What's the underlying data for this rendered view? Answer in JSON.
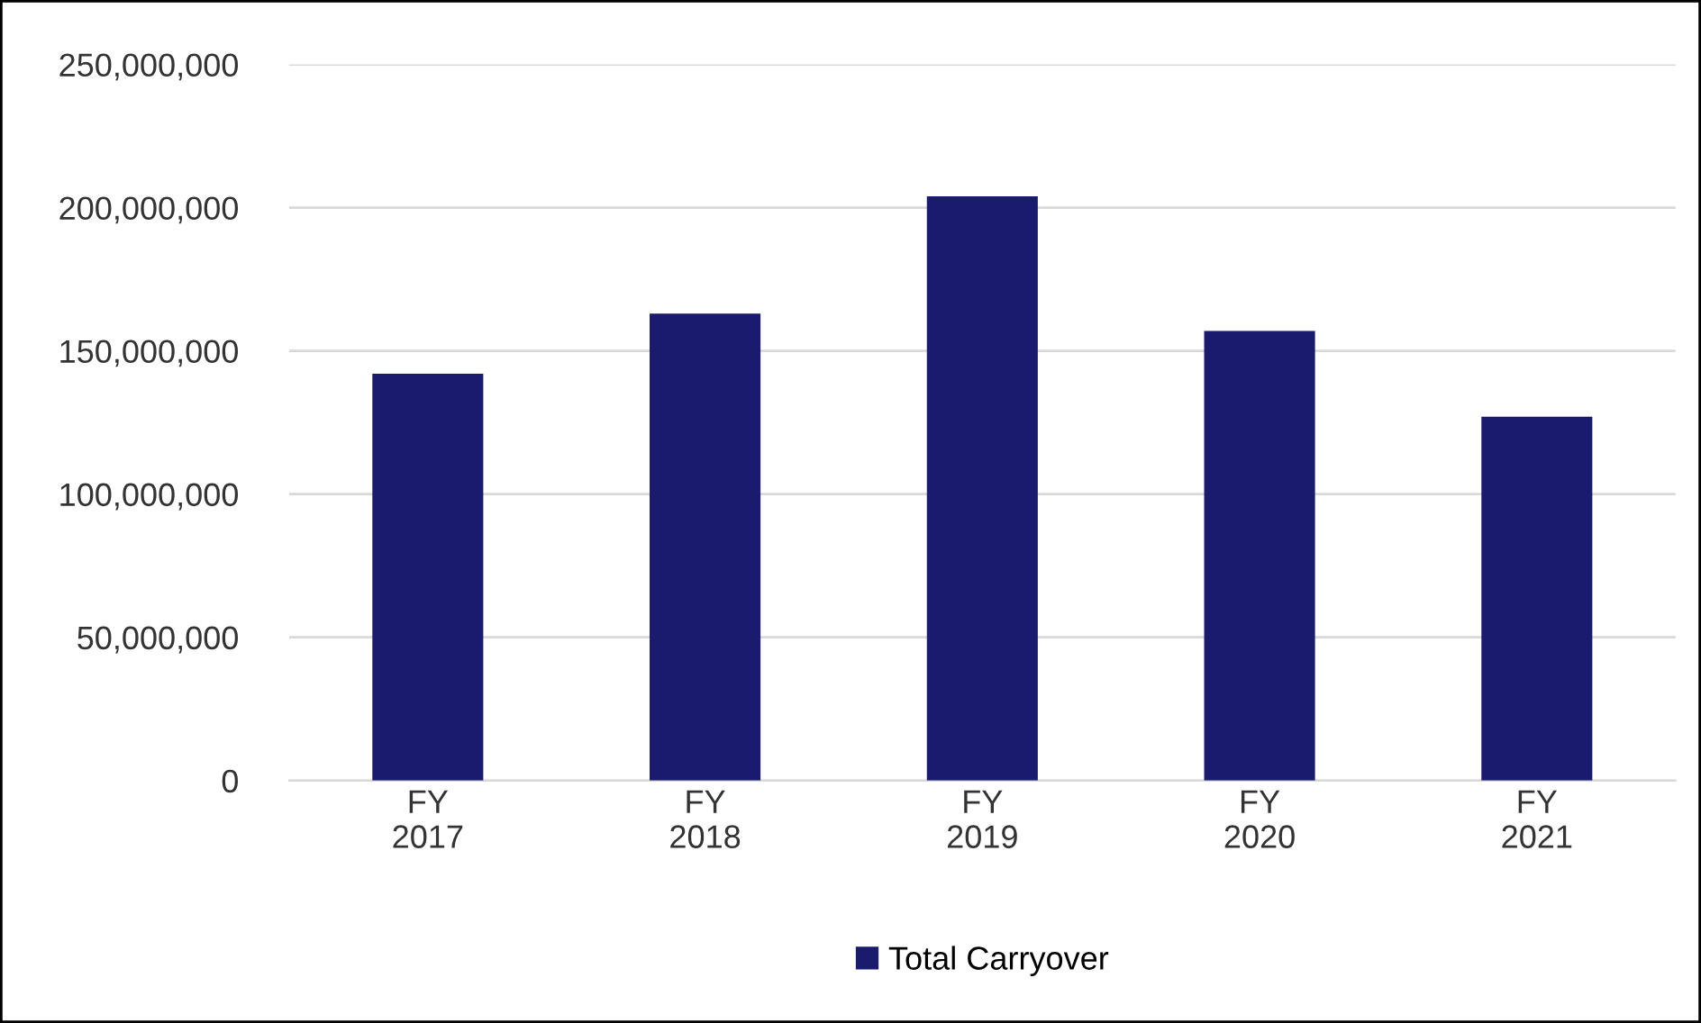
{
  "chart_data": {
    "type": "bar",
    "categories": [
      "FY\n2017",
      "FY\n2018",
      "FY\n2019",
      "FY\n2020",
      "FY\n2021"
    ],
    "series": [
      {
        "name": "Total Carryover",
        "color": "#1a1a6e",
        "values": [
          142000000,
          163000000,
          204000000,
          157000000,
          127000000
        ]
      }
    ],
    "ylim": [
      0,
      250000000
    ],
    "yticks": [
      {
        "value": 0,
        "label": "0"
      },
      {
        "value": 50000000,
        "label": "50,000,000"
      },
      {
        "value": 100000000,
        "label": "100,000,000"
      },
      {
        "value": 150000000,
        "label": "150,000,000"
      },
      {
        "value": 200000000,
        "label": "200,000,000"
      },
      {
        "value": 250000000,
        "label": "250,000,000"
      }
    ],
    "grid": "y",
    "legend": "bottom"
  }
}
